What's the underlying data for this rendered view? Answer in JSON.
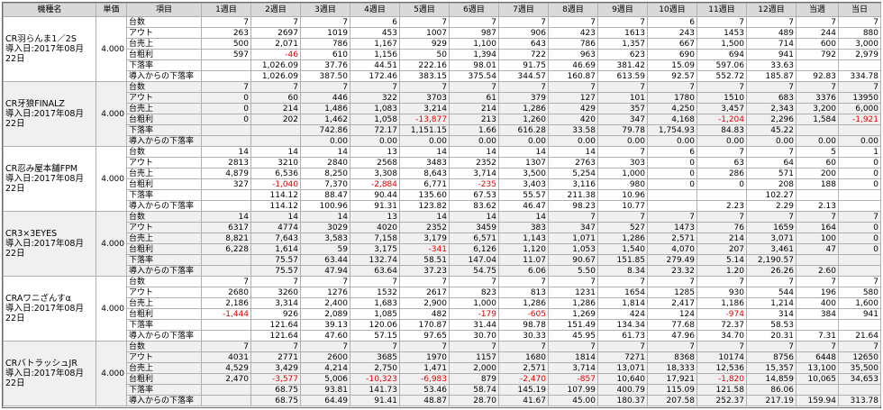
{
  "columns": [
    "機種名",
    "単価",
    "項目",
    "1週目",
    "2週目",
    "3週目",
    "4週目",
    "5週目",
    "6週目",
    "7週目",
    "8週目",
    "9週目",
    "10週目",
    "11週目",
    "12週目",
    "当週",
    "当日"
  ],
  "items": [
    "台数",
    "アウト",
    "台売上",
    "台粗利",
    "下落率",
    "導入からの下落率"
  ],
  "machines": [
    {
      "name": "CR羽らんま1／2S",
      "intro": "導入日:2017年08月22日",
      "price": "4.000",
      "rows": [
        [
          "7",
          "7",
          "7",
          "6",
          "7",
          "7",
          "7",
          "7",
          "7",
          "6",
          "7",
          "7",
          "7",
          "7"
        ],
        [
          "263",
          "2697",
          "1019",
          "453",
          "1007",
          "987",
          "906",
          "423",
          "1613",
          "243",
          "1453",
          "489",
          "244",
          "880"
        ],
        [
          "500",
          "2,071",
          "786",
          "1,167",
          "929",
          "1,100",
          "643",
          "786",
          "1,357",
          "667",
          "1,500",
          "714",
          "600",
          "3,000"
        ],
        [
          "597",
          "-46",
          "610",
          "1,156",
          "50",
          "1,394",
          "722",
          "963",
          "623",
          "690",
          "694",
          "941",
          "792",
          "2,979"
        ],
        [
          null,
          "1,026.09",
          "37.76",
          "44.51",
          "222.16",
          "98.01",
          "91.75",
          "46.69",
          "381.42",
          "15.09",
          "597.06",
          "33.63",
          null,
          null
        ],
        [
          null,
          "1,026.09",
          "387.50",
          "172.46",
          "383.15",
          "375.54",
          "344.57",
          "160.87",
          "613.59",
          "92.57",
          "552.72",
          "185.87",
          "92.83",
          "334.78"
        ]
      ]
    },
    {
      "name": "CR牙狼FINALZ",
      "intro": "導入日:2017年08月22日",
      "price": "4.000",
      "rows": [
        [
          "7",
          "7",
          "7",
          "7",
          "7",
          "7",
          "7",
          "7",
          "7",
          "7",
          "7",
          "7",
          "7",
          "7"
        ],
        [
          "0",
          "60",
          "446",
          "322",
          "3703",
          "61",
          "379",
          "127",
          "101",
          "1780",
          "1510",
          "683",
          "3376",
          "13950"
        ],
        [
          "0",
          "214",
          "1,486",
          "1,083",
          "3,214",
          "214",
          "1,286",
          "429",
          "357",
          "4,250",
          "3,457",
          "2,343",
          "3,200",
          "6,000"
        ],
        [
          "0",
          "202",
          "1,462",
          "1,058",
          "-13,877",
          "213",
          "1,260",
          "420",
          "347",
          "4,168",
          "-1,204",
          "2,296",
          "1,584",
          "-1,921"
        ],
        [
          null,
          null,
          "742.86",
          "72.17",
          "1,151.15",
          "1.66",
          "616.28",
          "33.58",
          "79.78",
          "1,754.93",
          "84.83",
          "45.22",
          null,
          null
        ],
        [
          null,
          null,
          "0.00",
          "0.00",
          "0.00",
          "0.00",
          "0.00",
          "0.00",
          "0.00",
          "0.00",
          "0.00",
          "0.00",
          "0.00",
          "0.00"
        ]
      ]
    },
    {
      "name": "CR忍み屋本舗FPM",
      "intro": "導入日:2017年08月22日",
      "price": "4.000",
      "rows": [
        [
          "14",
          "14",
          "14",
          "13",
          "14",
          "14",
          "14",
          "14",
          "7",
          "6",
          "7",
          "7",
          "5",
          "1"
        ],
        [
          "2813",
          "3210",
          "2840",
          "2568",
          "3483",
          "2352",
          "1307",
          "2763",
          "303",
          "0",
          "63",
          "64",
          "60",
          "0"
        ],
        [
          "4,879",
          "6,536",
          "8,250",
          "3,308",
          "8,643",
          "3,714",
          "3,500",
          "5,254",
          "1,000",
          "0",
          "286",
          "571",
          "200",
          "0"
        ],
        [
          "327",
          "-1,040",
          "7,370",
          "-2,884",
          "6,771",
          "-235",
          "3,403",
          "3,116",
          "980",
          "0",
          "0",
          "208",
          "188",
          "0"
        ],
        [
          null,
          "114.12",
          "88.47",
          "90.44",
          "135.60",
          "67.53",
          "55.57",
          "211.38",
          "10.96",
          null,
          null,
          "102.27",
          null,
          null
        ],
        [
          null,
          "114.12",
          "100.96",
          "91.31",
          "123.82",
          "83.62",
          "46.47",
          "98.23",
          "10.77",
          null,
          "2.23",
          "2.29",
          "2.13",
          null
        ]
      ]
    },
    {
      "name": "CR3×3EYES",
      "intro": "導入日:2017年08月22日",
      "price": "4.000",
      "rows": [
        [
          "14",
          "14",
          "14",
          "13",
          "14",
          "14",
          "14",
          "7",
          "7",
          "7",
          "7",
          "7",
          "7",
          "7"
        ],
        [
          "6317",
          "4774",
          "3029",
          "4020",
          "2352",
          "3459",
          "383",
          "347",
          "527",
          "1473",
          "76",
          "1659",
          "164",
          "0"
        ],
        [
          "8,821",
          "7,643",
          "3,583",
          "7,158",
          "3,179",
          "6,571",
          "1,143",
          "1,071",
          "1,286",
          "2,571",
          "214",
          "3,071",
          "100",
          "0"
        ],
        [
          "6,228",
          "1,614",
          "59",
          "3,175",
          "-341",
          "6,126",
          "1,120",
          "1,053",
          "1,540",
          "4,070",
          "207",
          "3,461",
          "47",
          "0"
        ],
        [
          null,
          "75.57",
          "63.44",
          "132.74",
          "58.51",
          "147.04",
          "11.07",
          "90.67",
          "151.85",
          "279.49",
          "5.14",
          "2,190.57",
          null,
          null
        ],
        [
          null,
          "75.57",
          "47.94",
          "63.64",
          "37.23",
          "54.75",
          "6.06",
          "5.50",
          "8.34",
          "23.32",
          "1.20",
          "26.26",
          "2.60",
          null
        ]
      ]
    },
    {
      "name": "CRAワニざんすα",
      "intro": "導入日:2017年08月22日",
      "price": "4.000",
      "rows": [
        [
          "7",
          "7",
          "7",
          "7",
          "7",
          "7",
          "7",
          "7",
          "7",
          "7",
          "7",
          "7",
          "7",
          "7"
        ],
        [
          "2680",
          "3260",
          "1276",
          "1532",
          "2617",
          "823",
          "813",
          "1231",
          "1654",
          "1285",
          "930",
          "544",
          "196",
          "580"
        ],
        [
          "2,186",
          "3,314",
          "2,400",
          "1,683",
          "2,900",
          "1,000",
          "1,286",
          "1,286",
          "1,814",
          "2,417",
          "1,186",
          "1,214",
          "400",
          "1,600"
        ],
        [
          "-1,444",
          "926",
          "2,089",
          "1,085",
          "482",
          "-179",
          "-605",
          "1,269",
          "424",
          "124",
          "-974",
          "314",
          "384",
          "941"
        ],
        [
          null,
          "121.64",
          "39.13",
          "120.06",
          "170.87",
          "31.44",
          "98.78",
          "151.49",
          "134.34",
          "77.68",
          "72.37",
          "58.53",
          null,
          null
        ],
        [
          null,
          "121.64",
          "47.60",
          "57.15",
          "97.65",
          "30.70",
          "30.33",
          "45.95",
          "61.73",
          "47.96",
          "34.70",
          "20.31",
          "7.31",
          "21.64"
        ]
      ]
    },
    {
      "name": "CRバトラッシュJR",
      "intro": "導入日:2017年08月22日",
      "price": "4.000",
      "rows": [
        [
          "7",
          "7",
          "7",
          "7",
          "7",
          "7",
          "7",
          "7",
          "7",
          "7",
          "7",
          "7",
          "7",
          "7"
        ],
        [
          "4031",
          "2771",
          "2600",
          "3685",
          "1970",
          "1157",
          "1680",
          "1814",
          "7271",
          "8368",
          "10174",
          "8756",
          "6448",
          "12650"
        ],
        [
          "4,529",
          "3,429",
          "4,214",
          "2,750",
          "1,471",
          "2,000",
          "2,571",
          "3,714",
          "13,071",
          "18,333",
          "12,536",
          "15,357",
          "13,100",
          "35,500"
        ],
        [
          "2,470",
          "-3,577",
          "5,006",
          "-10,323",
          "-6,983",
          "879",
          "-2,470",
          "-857",
          "10,640",
          "17,921",
          "-1,820",
          "14,859",
          "10,065",
          "34,653"
        ],
        [
          null,
          "68.75",
          "93.81",
          "141.73",
          "53.46",
          "58.74",
          "145.19",
          "107.99",
          "400.79",
          "115.09",
          "121.58",
          "86.06",
          null,
          null
        ],
        [
          null,
          "68.75",
          "64.49",
          "91.41",
          "48.87",
          "28.70",
          "41.67",
          "45.00",
          "180.37",
          "207.58",
          "252.37",
          "217.19",
          "159.94",
          "313.78"
        ]
      ]
    }
  ]
}
